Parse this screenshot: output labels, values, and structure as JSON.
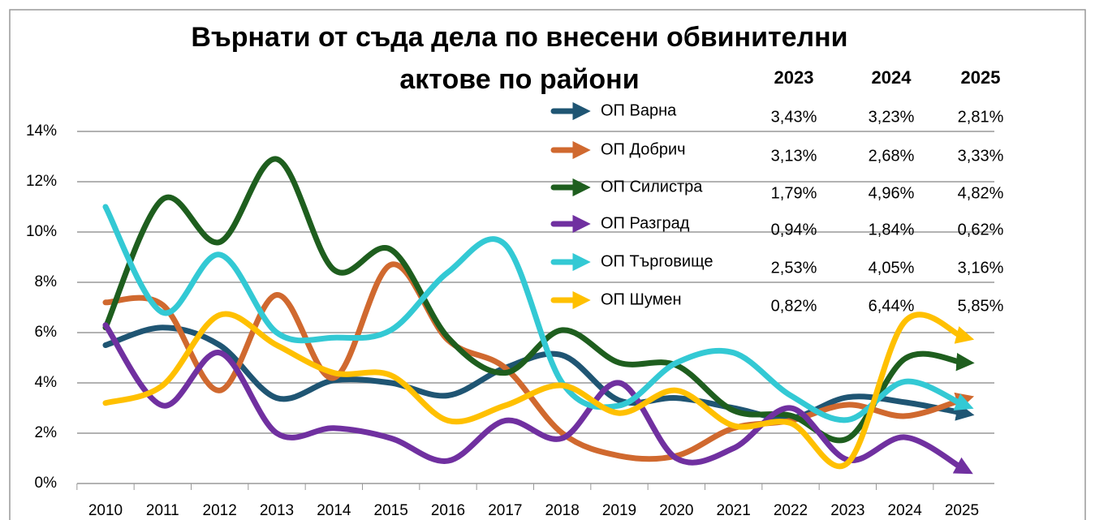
{
  "chart_data": {
    "type": "line",
    "title": [
      "Върнати от съда дела по внесени обвинителни",
      "актове по райони"
    ],
    "categories": [
      "2010",
      "2011",
      "2012",
      "2013",
      "2014",
      "2015",
      "2016",
      "2017",
      "2018",
      "2019",
      "2020",
      "2021",
      "2022",
      "2023",
      "2024",
      "2025"
    ],
    "ylim": [
      0,
      14
    ],
    "yticks": [
      {
        "value": 0,
        "label": "0%"
      },
      {
        "value": 2,
        "label": "2%"
      },
      {
        "value": 4,
        "label": "4%"
      },
      {
        "value": 6,
        "label": "6%"
      },
      {
        "value": 8,
        "label": "8%"
      },
      {
        "value": 10,
        "label": "10%"
      },
      {
        "value": 12,
        "label": "12%"
      },
      {
        "value": 14,
        "label": "14%"
      }
    ],
    "grid": true,
    "series": [
      {
        "name": "ОП Варна",
        "color": "#1f5573",
        "values": [
          5.5,
          6.2,
          5.5,
          3.4,
          4.1,
          4.0,
          3.5,
          4.6,
          5.1,
          3.3,
          3.4,
          3.0,
          2.6,
          3.43,
          3.23,
          2.81
        ]
      },
      {
        "name": "ОП Добрич",
        "color": "#d0692f",
        "values": [
          7.2,
          7.1,
          3.7,
          7.5,
          4.2,
          8.7,
          5.7,
          4.6,
          2.0,
          1.1,
          1.1,
          2.2,
          2.5,
          3.13,
          2.68,
          3.33
        ]
      },
      {
        "name": "ОП Силистра",
        "color": "#1e5e1e",
        "values": [
          6.2,
          11.3,
          9.6,
          12.9,
          8.5,
          9.3,
          5.8,
          4.4,
          6.1,
          4.8,
          4.7,
          2.9,
          2.7,
          1.79,
          4.96,
          4.82
        ]
      },
      {
        "name": "ОП Разград",
        "color": "#7030a0",
        "values": [
          6.3,
          3.1,
          5.2,
          2.0,
          2.2,
          1.8,
          0.9,
          2.5,
          1.8,
          4.0,
          1.0,
          1.4,
          3.0,
          0.94,
          1.84,
          0.62
        ]
      },
      {
        "name": "ОП Търговище",
        "color": "#33c9d4",
        "values": [
          11.0,
          6.8,
          9.1,
          6.0,
          5.8,
          6.1,
          8.4,
          9.5,
          4.0,
          3.1,
          4.8,
          5.2,
          3.5,
          2.53,
          4.05,
          3.16
        ]
      },
      {
        "name": "ОП Шумен",
        "color": "#ffc000",
        "values": [
          3.2,
          3.9,
          6.7,
          5.5,
          4.4,
          4.3,
          2.5,
          3.1,
          3.9,
          2.8,
          3.7,
          2.3,
          2.4,
          0.82,
          6.44,
          5.85
        ]
      }
    ],
    "table": {
      "columns": [
        "2023",
        "2024",
        "2025"
      ],
      "rows": [
        [
          "3,43%",
          "3,23%",
          "2,81%"
        ],
        [
          "3,13%",
          "2,68%",
          "3,33%"
        ],
        [
          "1,79%",
          "4,96%",
          "4,82%"
        ],
        [
          "0,94%",
          "1,84%",
          "0,62%"
        ],
        [
          "2,53%",
          "4,05%",
          "3,16%"
        ],
        [
          "0,82%",
          "6,44%",
          "5,85%"
        ]
      ]
    }
  }
}
